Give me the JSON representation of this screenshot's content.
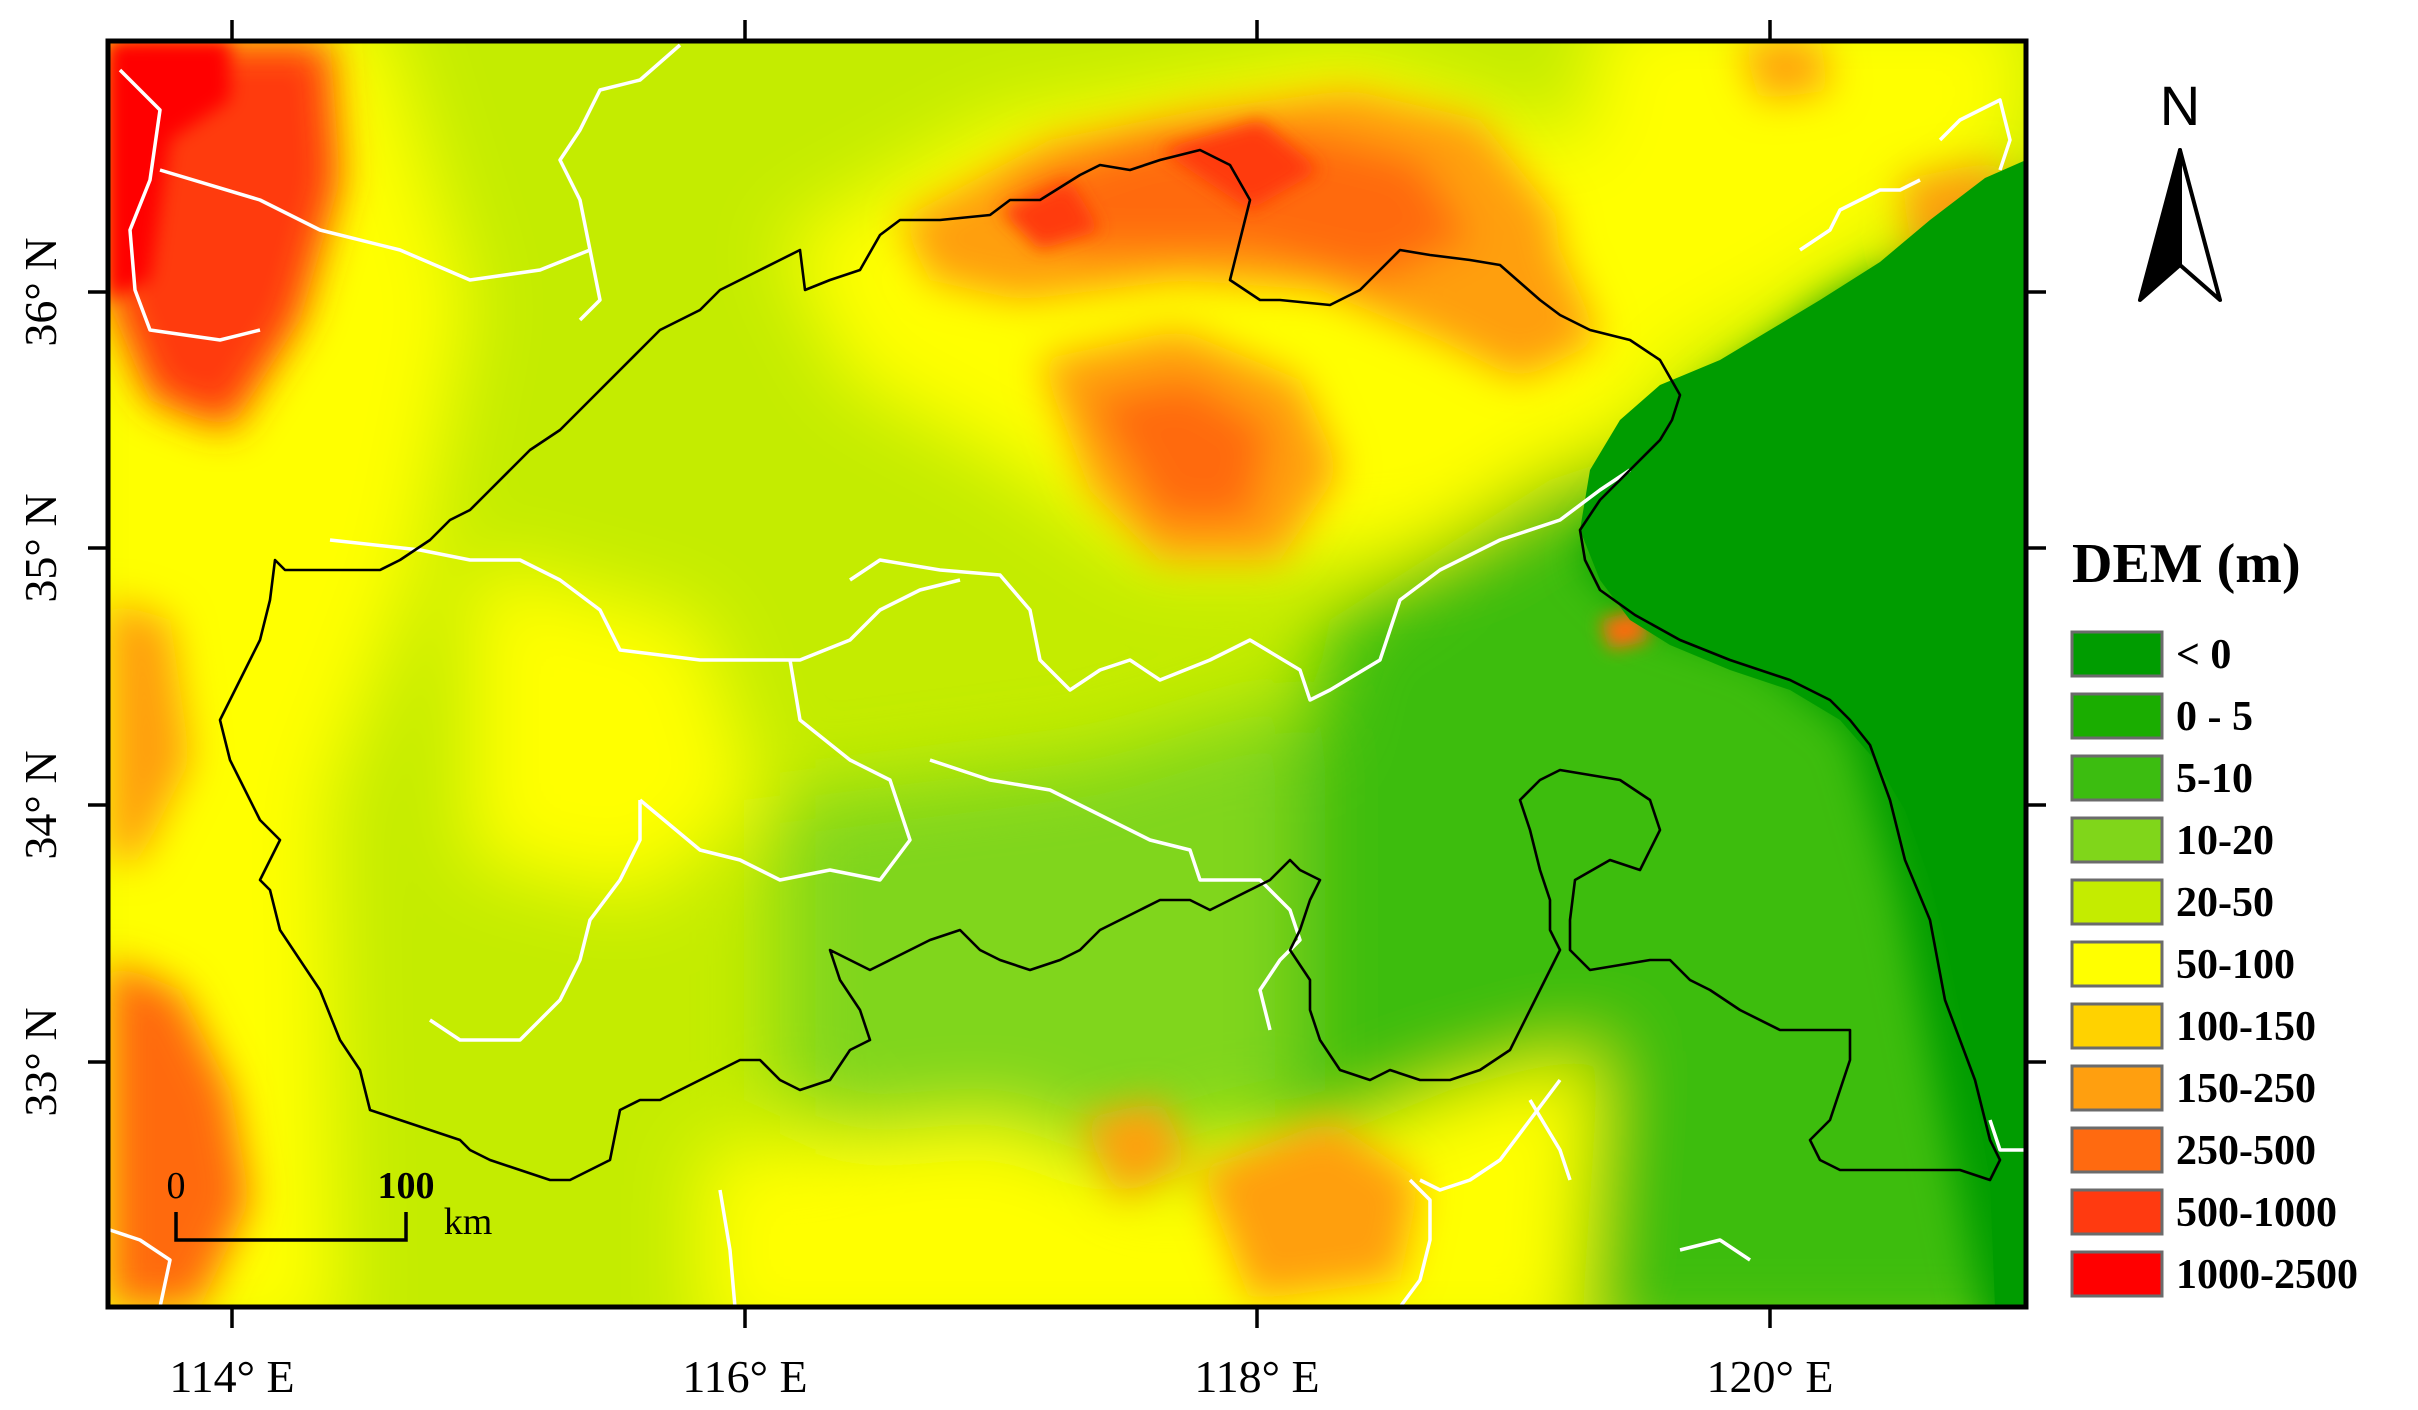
{
  "map": {
    "x_ticks": [
      "114° E",
      "116° E",
      "118° E",
      "120° E"
    ],
    "y_ticks": [
      "36° N",
      "35° N",
      "34° N",
      "33° N"
    ]
  },
  "legend": {
    "title": "DEM (m)",
    "items": [
      {
        "label": "< 0",
        "color": "#009c00"
      },
      {
        "label": "0 - 5",
        "color": "#1aad00"
      },
      {
        "label": "5-10",
        "color": "#3cbd10"
      },
      {
        "label": "10-20",
        "color": "#80d61a"
      },
      {
        "label": "20-50",
        "color": "#c4ec00"
      },
      {
        "label": "50-100",
        "color": "#ffff00"
      },
      {
        "label": "100-150",
        "color": "#ffd200"
      },
      {
        "label": "150-250",
        "color": "#ff9f0f"
      },
      {
        "label": "250-500",
        "color": "#ff6a10"
      },
      {
        "label": "500-1000",
        "color": "#ff3a10"
      },
      {
        "label": "1000-2500",
        "color": "#ff0000"
      }
    ]
  },
  "north_arrow": {
    "label": "N",
    "icon": "north-arrow-icon"
  },
  "scale_bar": {
    "start": "0",
    "end": "100",
    "unit": "km"
  }
}
